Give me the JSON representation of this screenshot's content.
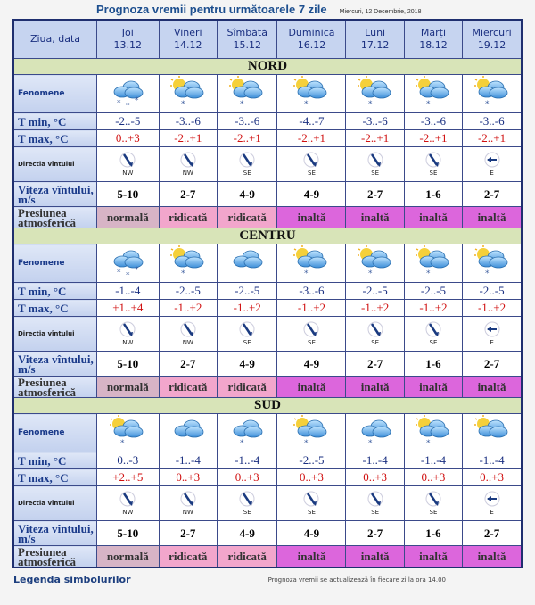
{
  "title": "Prognoza vremii pentru următoarele 7 zile",
  "date": "Miercuri, 12 Decembrie, 2018",
  "header_label": "Ziua, data",
  "days": [
    {
      "name": "Joi",
      "date": "13.12"
    },
    {
      "name": "Vineri",
      "date": "14.12"
    },
    {
      "name": "Sîmbătă",
      "date": "15.12"
    },
    {
      "name": "Duminică",
      "date": "16.12"
    },
    {
      "name": "Luni",
      "date": "17.12"
    },
    {
      "name": "Marți",
      "date": "18.12"
    },
    {
      "name": "Miercuri",
      "date": "19.12"
    }
  ],
  "row_labels": {
    "fen": "Fenomene",
    "tmin": "T min, °C",
    "tmax": "T max, °C",
    "dir": "Directia vîntului",
    "vit": "Viteza vîntului, m/s",
    "pr": "Presiunea atmosferică"
  },
  "pressure_colors": {
    "normală": "#d7b4c6",
    "ridicată": "#f2a6cc",
    "inaltă": "#dc66dc"
  },
  "regions": [
    {
      "name": "NORD",
      "fen": [
        "snow",
        "sun-snow",
        "sun-snow",
        "sun-snow",
        "sun-snow",
        "sun-snow",
        "sun-snow"
      ],
      "tmin": [
        "-2..-5",
        "-3..-6",
        "-3..-6",
        "-4..-7",
        "-3..-6",
        "-3..-6",
        "-3..-6"
      ],
      "tmax": [
        "0..+3",
        "-2..+1",
        "-2..+1",
        "-2..+1",
        "-2..+1",
        "-2..+1",
        "-2..+1"
      ],
      "dir": [
        "NW",
        "NW",
        "SE",
        "SE",
        "SE",
        "SE",
        "E"
      ],
      "vit": [
        "5-10",
        "2-7",
        "4-9",
        "4-9",
        "2-7",
        "1-6",
        "2-7"
      ],
      "pr": [
        "normală",
        "ridicată",
        "ridicată",
        "inaltă",
        "inaltă",
        "inaltă",
        "inaltă"
      ]
    },
    {
      "name": "CENTRU",
      "fen": [
        "snow",
        "sun-snow",
        "cloud",
        "sun-snow",
        "sun-snow",
        "sun-snow",
        "sun-snow"
      ],
      "tmin": [
        "-1..-4",
        "-2..-5",
        "-2..-5",
        "-3..-6",
        "-2..-5",
        "-2..-5",
        "-2..-5"
      ],
      "tmax": [
        "+1..+4",
        "-1..+2",
        "-1..+2",
        "-1..+2",
        "-1..+2",
        "-1..+2",
        "-1..+2"
      ],
      "dir": [
        "NW",
        "NW",
        "SE",
        "SE",
        "SE",
        "SE",
        "E"
      ],
      "vit": [
        "5-10",
        "2-7",
        "4-9",
        "4-9",
        "2-7",
        "1-6",
        "2-7"
      ],
      "pr": [
        "normală",
        "ridicată",
        "ridicată",
        "inaltă",
        "inaltă",
        "inaltă",
        "inaltă"
      ]
    },
    {
      "name": "SUD",
      "fen": [
        "sun-snow",
        "cloud",
        "cloud-snow",
        "sun-snow",
        "cloud-snow",
        "sun-snow",
        "sun-cloud"
      ],
      "tmin": [
        "0..-3",
        "-1..-4",
        "-1..-4",
        "-2..-5",
        "-1..-4",
        "-1..-4",
        "-1..-4"
      ],
      "tmax": [
        "+2..+5",
        "0..+3",
        "0..+3",
        "0..+3",
        "0..+3",
        "0..+3",
        "0..+3"
      ],
      "dir": [
        "NW",
        "NW",
        "SE",
        "SE",
        "SE",
        "SE",
        "E"
      ],
      "vit": [
        "5-10",
        "2-7",
        "4-9",
        "4-9",
        "2-7",
        "1-6",
        "2-7"
      ],
      "pr": [
        "normală",
        "ridicată",
        "ridicată",
        "inaltă",
        "inaltă",
        "inaltă",
        "inaltă"
      ]
    }
  ],
  "legend_link": "Legenda simbolurilor",
  "update_note": "Prognoza vremii se actualizează în fiecare zi la ora 14.00"
}
